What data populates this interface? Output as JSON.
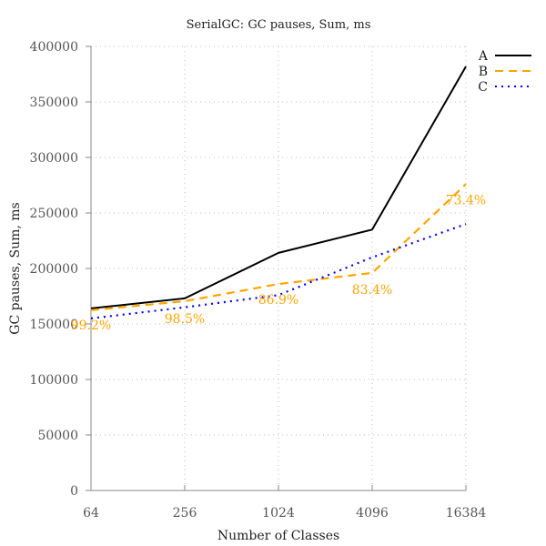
{
  "chart_data": {
    "type": "line",
    "title": "SerialGC: GC pauses, Sum, ms",
    "xlabel": "Number of Classes",
    "ylabel": "GC pauses, Sum, ms",
    "x_scale": "log2",
    "x": [
      64,
      256,
      1024,
      4096,
      16384
    ],
    "x_tick_labels": [
      "64",
      "256",
      "1024",
      "4096",
      "16384"
    ],
    "ylim": [
      0,
      400000
    ],
    "y_ticks": [
      0,
      50000,
      100000,
      150000,
      200000,
      250000,
      300000,
      350000,
      400000
    ],
    "y_tick_labels": [
      "0",
      "50000",
      "100000",
      "150000",
      "200000",
      "250000",
      "300000",
      "350000",
      "400000"
    ],
    "grid": true,
    "legend_position": "top-right",
    "series": [
      {
        "name": "A",
        "color": "#000000",
        "style": "solid",
        "values": [
          164000,
          173000,
          214000,
          235000,
          382000
        ]
      },
      {
        "name": "B",
        "color": "#ffa500",
        "style": "dashed",
        "values": [
          162500,
          170500,
          186000,
          196000,
          276000
        ]
      },
      {
        "name": "C",
        "color": "#0000ff",
        "style": "dotted",
        "values": [
          155000,
          165000,
          176000,
          210000,
          240000
        ]
      }
    ],
    "annotations": [
      {
        "text": "99.2%",
        "x": 64,
        "y": 149000
      },
      {
        "text": "98.5%",
        "x": 256,
        "y": 155000
      },
      {
        "text": "86.9%",
        "x": 1024,
        "y": 172000
      },
      {
        "text": "83.4%",
        "x": 4096,
        "y": 181000
      },
      {
        "text": "73.4%",
        "x": 16384,
        "y": 262000
      }
    ]
  }
}
